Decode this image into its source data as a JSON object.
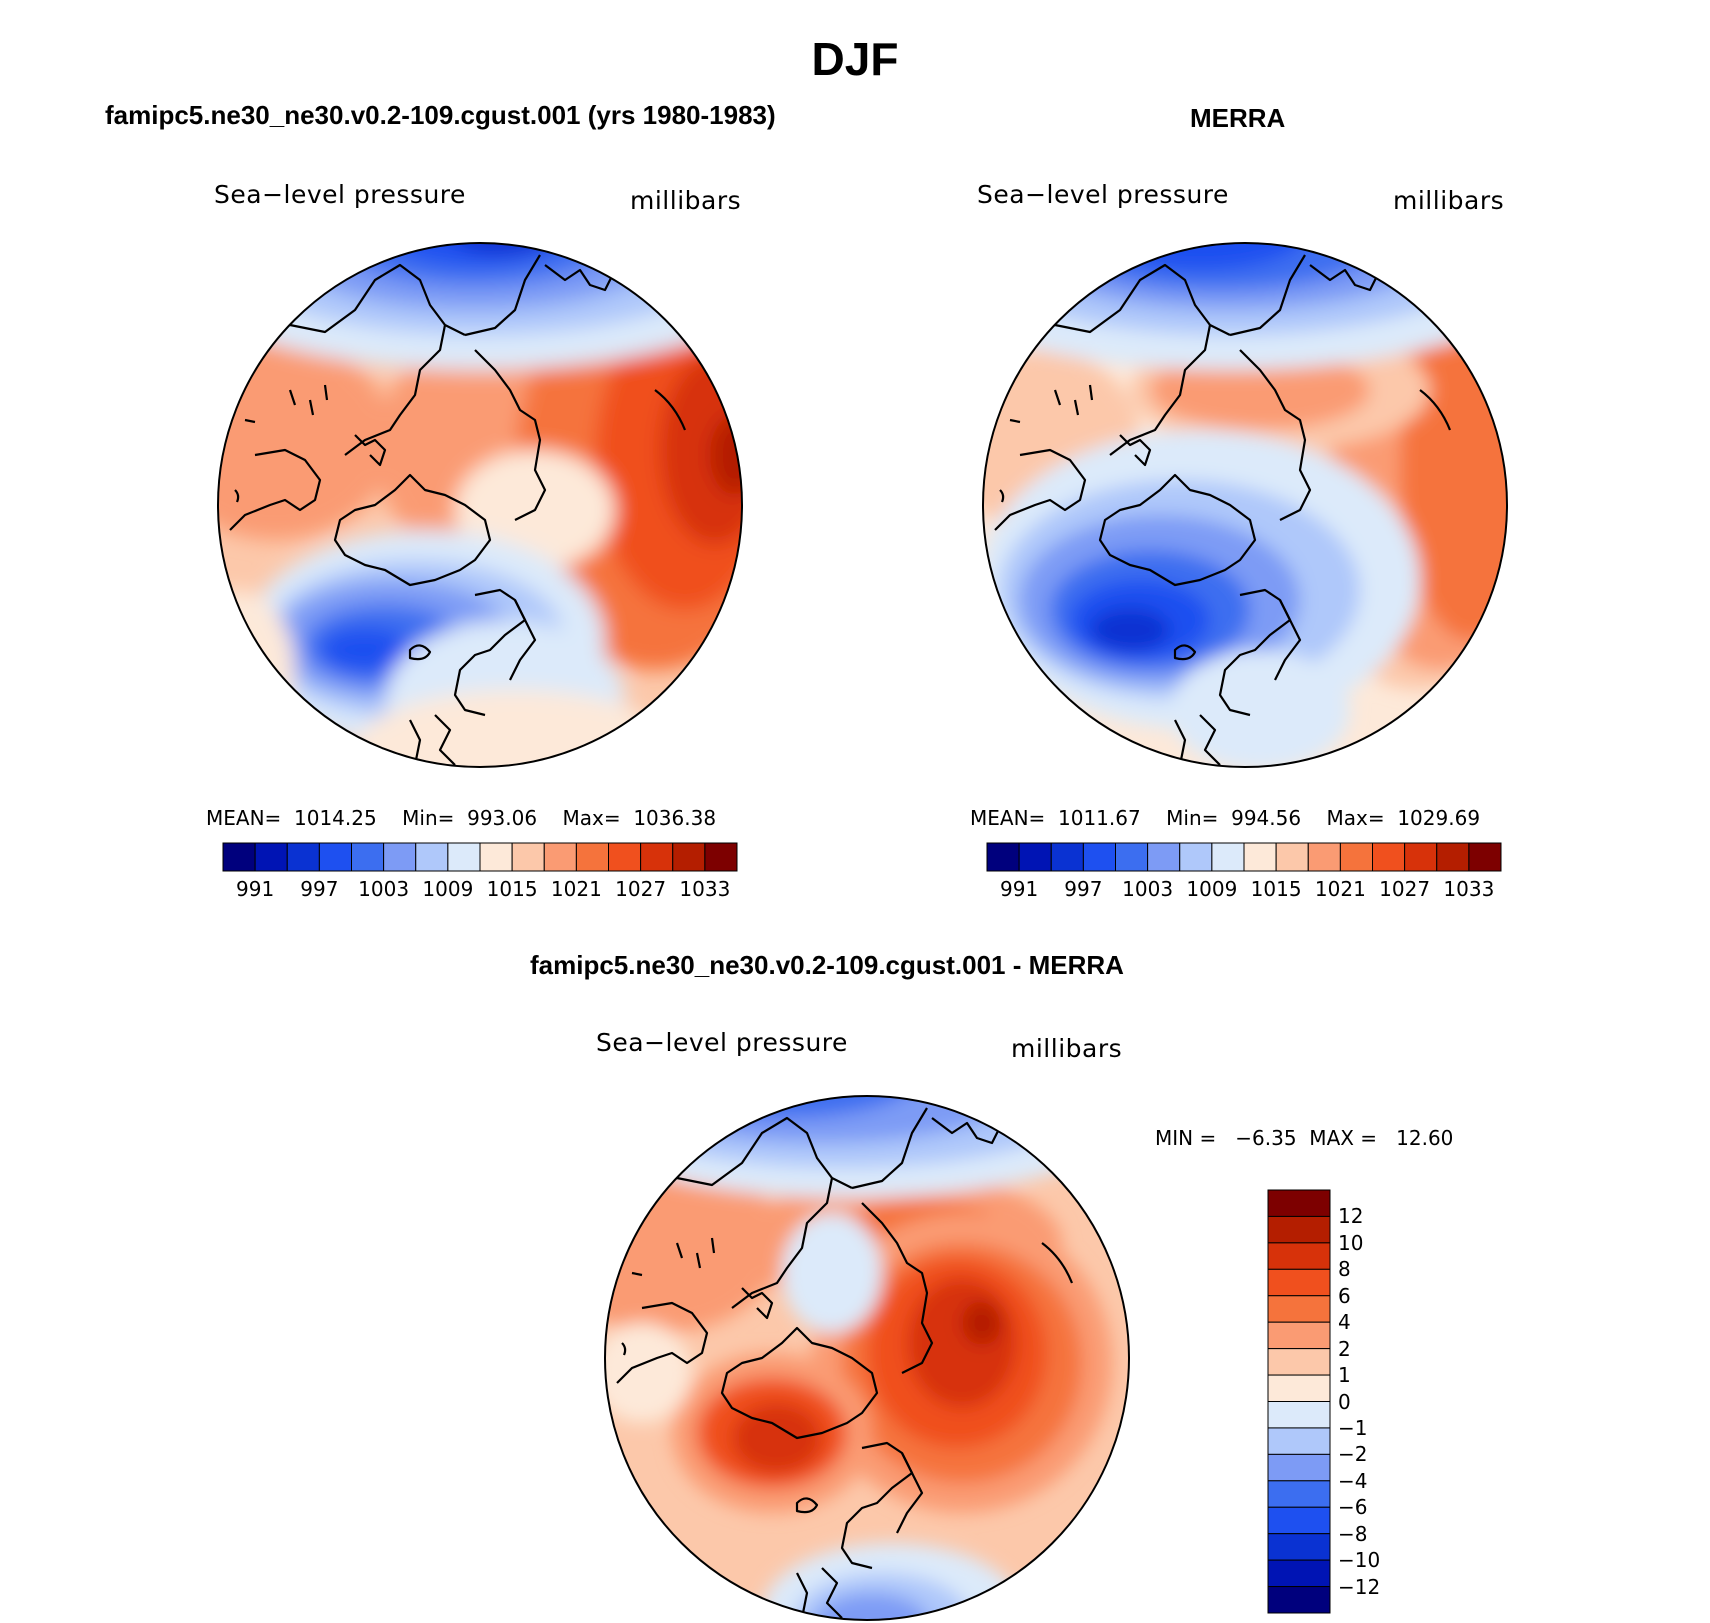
{
  "page": {
    "title": "DJF"
  },
  "panels": [
    {
      "title": "famipc5.ne30_ne30.v0.2-109.cgust.001 (yrs 1980-1983)",
      "variable_label": "Sea−level pressure",
      "units_label": "millibars",
      "stats": {
        "mean": "1014.25",
        "min": "993.06",
        "max": "1036.38"
      },
      "stats_text": "MEAN=  1014.25    Min=  993.06    Max=  1036.38"
    },
    {
      "title": "MERRA",
      "variable_label": "Sea−level pressure",
      "units_label": "millibars",
      "stats": {
        "mean": "1011.67",
        "min": "994.56",
        "max": "1029.69"
      },
      "stats_text": "MEAN=  1011.67    Min=  994.56    Max=  1029.69"
    },
    {
      "title": "famipc5.ne30_ne30.v0.2-109.cgust.001 - MERRA",
      "variable_label": "Sea−level pressure",
      "units_label": "millibars",
      "stats": {
        "min": "−6.35",
        "max": "12.60"
      },
      "stats_text": "MIN =   −6.35  MAX =   12.60"
    }
  ],
  "colorbars": {
    "absolute": {
      "tick_labels": [
        "991",
        "997",
        "1003",
        "1009",
        "1015",
        "1021",
        "1027",
        "1033"
      ],
      "colors": [
        "#00007d",
        "#0014b4",
        "#0a32d2",
        "#1e50f0",
        "#3c6ef0",
        "#7d9bf5",
        "#afc8fa",
        "#dceafa",
        "#fde9d9",
        "#fcc8aa",
        "#fa9b73",
        "#f5733c",
        "#f0501e",
        "#d7320a",
        "#b41e00",
        "#7d0000"
      ]
    },
    "difference": {
      "tick_labels": [
        "12",
        "10",
        "8",
        "6",
        "4",
        "2",
        "1",
        "0",
        "−1",
        "−2",
        "−4",
        "−6",
        "−8",
        "−10",
        "−12"
      ],
      "colors": [
        "#7d0000",
        "#b41e00",
        "#d7320a",
        "#f0501e",
        "#f5733c",
        "#fa9b73",
        "#fcc8aa",
        "#fde9d9",
        "#dceafa",
        "#afc8fa",
        "#7d9bf5",
        "#3c6ef0",
        "#1e50f0",
        "#0a32d2",
        "#0014b4",
        "#00007d"
      ]
    }
  }
}
